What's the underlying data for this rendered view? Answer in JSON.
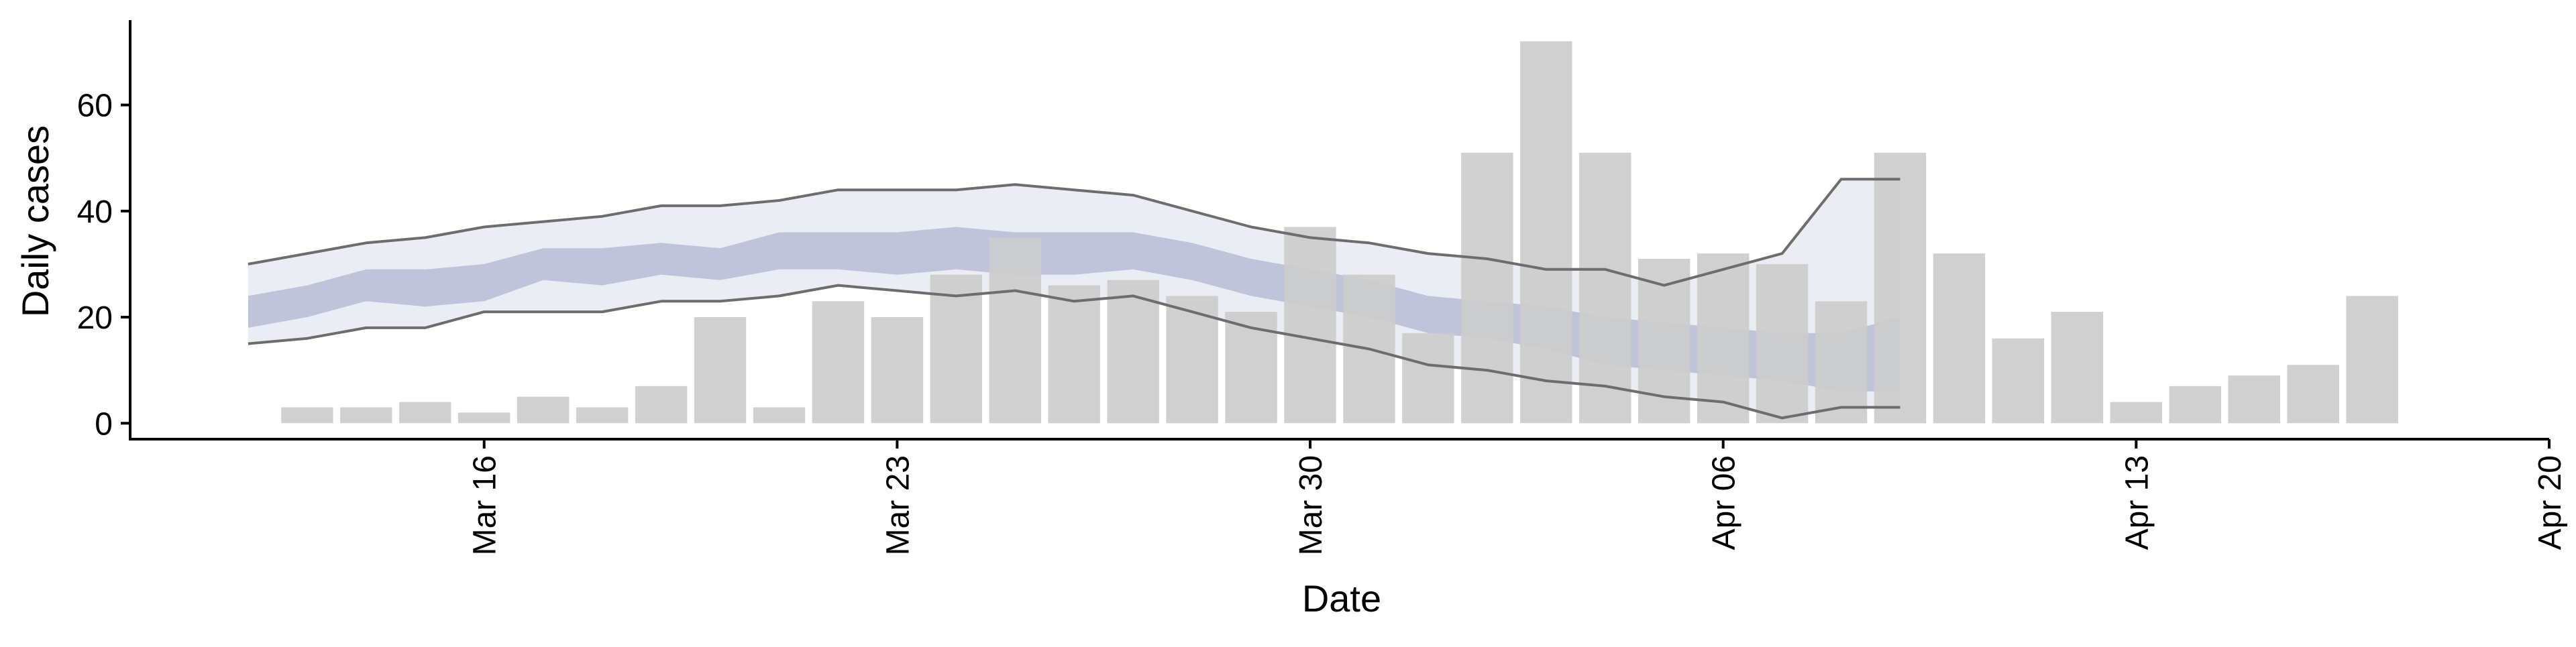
{
  "chart_data": {
    "type": "bar",
    "xlabel": "Date",
    "ylabel": "Daily cases",
    "x_domain": [
      "2020-03-10",
      "2020-04-20"
    ],
    "ylim": [
      -3,
      76
    ],
    "y_ticks": [
      {
        "value": 0,
        "label": "0"
      },
      {
        "value": 20,
        "label": "20"
      },
      {
        "value": 40,
        "label": "40"
      },
      {
        "value": 60,
        "label": "60"
      }
    ],
    "x_ticks": [
      {
        "date": "2020-03-16",
        "label": "Mar 16"
      },
      {
        "date": "2020-03-23",
        "label": "Mar 23"
      },
      {
        "date": "2020-03-30",
        "label": "Mar 30"
      },
      {
        "date": "2020-04-06",
        "label": "Apr 06"
      },
      {
        "date": "2020-04-13",
        "label": "Apr 13"
      },
      {
        "date": "2020-04-20",
        "label": "Apr 20"
      }
    ],
    "grid": false,
    "legend": "none",
    "bars": {
      "dates": [
        "2020-03-13",
        "2020-03-14",
        "2020-03-15",
        "2020-03-16",
        "2020-03-17",
        "2020-03-18",
        "2020-03-19",
        "2020-03-20",
        "2020-03-21",
        "2020-03-22",
        "2020-03-23",
        "2020-03-24",
        "2020-03-25",
        "2020-03-26",
        "2020-03-27",
        "2020-03-28",
        "2020-03-29",
        "2020-03-30",
        "2020-03-31",
        "2020-04-01",
        "2020-04-02",
        "2020-04-03",
        "2020-04-04",
        "2020-04-05",
        "2020-04-06",
        "2020-04-07",
        "2020-04-08",
        "2020-04-09",
        "2020-04-10",
        "2020-04-11",
        "2020-04-12",
        "2020-04-13",
        "2020-04-14",
        "2020-04-15",
        "2020-04-16",
        "2020-04-17",
        "2020-04-18"
      ],
      "values": [
        3,
        3,
        4,
        2,
        5,
        3,
        7,
        20,
        3,
        23,
        20,
        28,
        35,
        26,
        27,
        24,
        21,
        37,
        28,
        17,
        51,
        72,
        51,
        31,
        32,
        30,
        23,
        51,
        32,
        16,
        21,
        4,
        7,
        9,
        11,
        24,
        null
      ],
      "color": "#cccccc"
    },
    "estimate_dates": [
      "2020-03-12",
      "2020-03-13",
      "2020-03-14",
      "2020-03-15",
      "2020-03-16",
      "2020-03-17",
      "2020-03-18",
      "2020-03-19",
      "2020-03-20",
      "2020-03-21",
      "2020-03-22",
      "2020-03-23",
      "2020-03-24",
      "2020-03-25",
      "2020-03-26",
      "2020-03-27",
      "2020-03-28",
      "2020-03-29",
      "2020-03-30",
      "2020-03-31",
      "2020-04-01",
      "2020-04-02",
      "2020-04-03",
      "2020-04-04",
      "2020-04-05",
      "2020-04-06",
      "2020-04-07",
      "2020-04-08",
      "2020-04-09"
    ],
    "outer_band": {
      "upper": [
        30,
        32,
        34,
        35,
        37,
        38,
        39,
        41,
        41,
        42,
        44,
        44,
        44,
        45,
        44,
        43,
        40,
        37,
        35,
        34,
        32,
        31,
        29,
        29,
        26,
        29,
        32,
        46,
        46
      ],
      "lower": [
        15,
        16,
        18,
        18,
        21,
        21,
        21,
        23,
        23,
        24,
        26,
        25,
        24,
        25,
        23,
        24,
        21,
        18,
        16,
        14,
        11,
        10,
        8,
        7,
        5,
        4,
        1,
        3,
        3
      ],
      "color": "#b8bdd6"
    },
    "inner_band": {
      "upper": [
        24,
        26,
        29,
        29,
        30,
        33,
        33,
        34,
        33,
        36,
        36,
        36,
        37,
        36,
        36,
        36,
        34,
        31,
        29,
        27,
        24,
        23,
        22,
        20,
        19,
        18,
        17,
        17,
        20
      ],
      "lower": [
        18,
        20,
        23,
        22,
        23,
        27,
        26,
        28,
        27,
        29,
        29,
        28,
        29,
        28,
        28,
        29,
        27,
        24,
        22,
        20,
        17,
        16,
        14,
        11,
        10,
        9,
        8,
        6,
        6
      ],
      "color": "#9aa3c7"
    },
    "line_color": "#6d6d6d"
  }
}
